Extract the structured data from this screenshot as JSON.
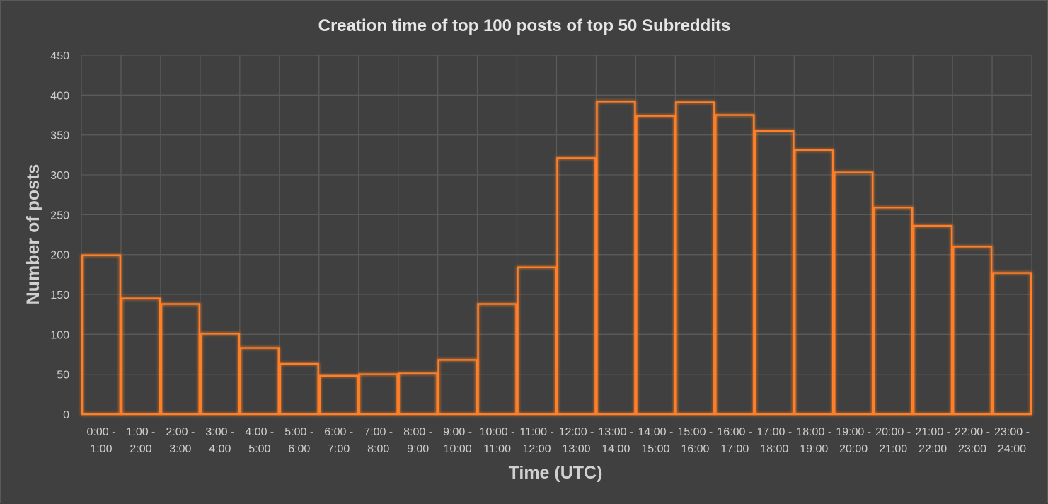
{
  "chart_data": {
    "type": "bar",
    "title": "Creation time of top 100 posts of top 50 Subreddits",
    "xlabel": "Time (UTC)",
    "ylabel": "Number of posts",
    "ylim": [
      0,
      450
    ],
    "yticks": [
      0,
      50,
      100,
      150,
      200,
      250,
      300,
      350,
      400,
      450
    ],
    "grid": true,
    "categories": [
      [
        "0:00 -",
        "1:00"
      ],
      [
        "1:00 -",
        "2:00"
      ],
      [
        "2:00 -",
        "3:00"
      ],
      [
        "3:00 -",
        "4:00"
      ],
      [
        "4:00 -",
        "5:00"
      ],
      [
        "5:00 -",
        "6:00"
      ],
      [
        "6:00 -",
        "7:00"
      ],
      [
        "7:00 -",
        "8:00"
      ],
      [
        "8:00 -",
        "9:00"
      ],
      [
        "9:00 -",
        "10:00"
      ],
      [
        "10:00 -",
        "11:00"
      ],
      [
        "11:00 -",
        "12:00"
      ],
      [
        "12:00 -",
        "13:00"
      ],
      [
        "13:00 -",
        "14:00"
      ],
      [
        "14:00 -",
        "15:00"
      ],
      [
        "15:00 -",
        "16:00"
      ],
      [
        "16:00 -",
        "17:00"
      ],
      [
        "17:00 -",
        "18:00"
      ],
      [
        "18:00 -",
        "19:00"
      ],
      [
        "19:00 -",
        "20:00"
      ],
      [
        "20:00 -",
        "21:00"
      ],
      [
        "21:00 -",
        "22:00"
      ],
      [
        "22:00 -",
        "23:00"
      ],
      [
        "23:00 -",
        "24:00"
      ]
    ],
    "values": [
      199,
      145,
      138,
      101,
      83,
      63,
      48,
      50,
      51,
      68,
      138,
      184,
      321,
      392,
      374,
      391,
      375,
      355,
      331,
      303,
      259,
      236,
      210,
      177
    ],
    "colors": {
      "background": "#404040",
      "bar_edge": "#ff7f27",
      "gridline": "#5a5a5a"
    }
  }
}
